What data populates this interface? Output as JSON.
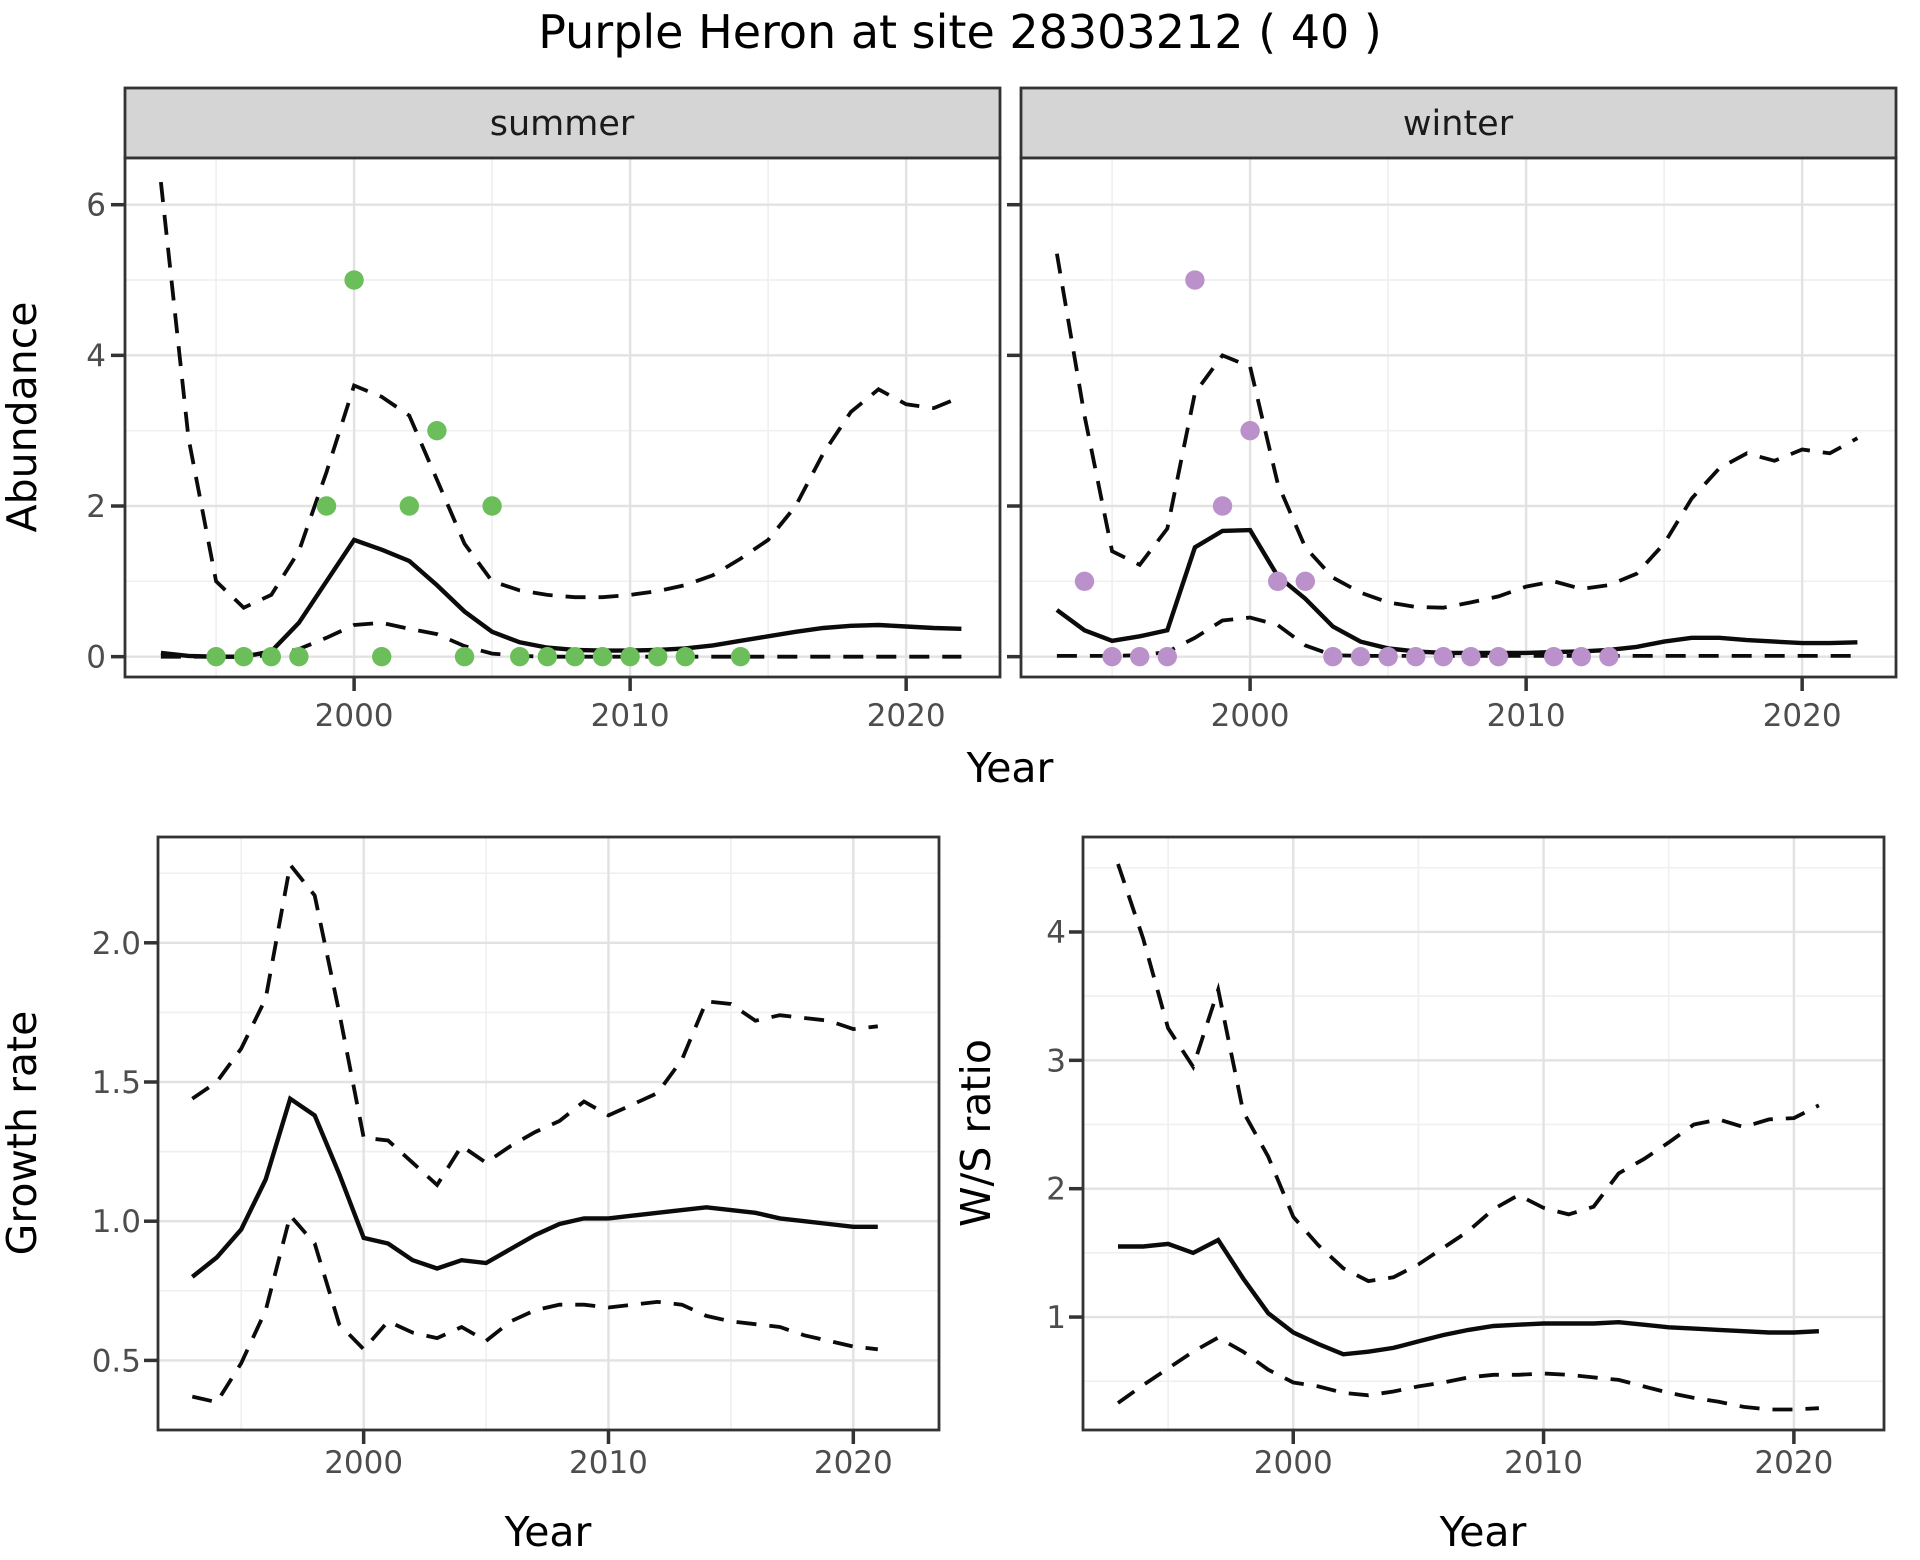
{
  "figure": {
    "title": "Purple Heron at site 28303212 ( 40 )"
  },
  "colors": {
    "summer_point": "#6CBE5A",
    "winter_point": "#BA91CA",
    "line": "#0b0b0b",
    "grid_major": "#E2E2E2",
    "grid_minor": "#F0F0F0",
    "panel_border": "#333333",
    "axis_text": "#4d4d4d",
    "strip_fill": "#d5d5d5"
  },
  "chart_data": [
    {
      "id": "abundance-summer",
      "type": "line",
      "facet": "summer",
      "xlabel": "Year",
      "ylabel": "Abundance",
      "xlim": [
        1991.7,
        2023.4
      ],
      "ylim": [
        -0.27,
        6.62
      ],
      "xticks": [
        2000,
        2010,
        2020
      ],
      "xtick_labels": [
        "2000",
        "2010",
        "2020"
      ],
      "xticks_minor": [
        1995,
        2005,
        2015
      ],
      "yticks": [
        0,
        2,
        4,
        6
      ],
      "ytick_labels": [
        "0",
        "2",
        "4",
        "6"
      ],
      "yticks_minor": [
        1,
        3,
        5
      ],
      "x": [
        1993,
        1994,
        1995,
        1996,
        1997,
        1998,
        1999,
        2000,
        2001,
        2002,
        2003,
        2004,
        2005,
        2006,
        2007,
        2008,
        2009,
        2010,
        2011,
        2012,
        2013,
        2014,
        2015,
        2016,
        2017,
        2018,
        2019,
        2020,
        2021,
        2022
      ],
      "series": [
        {
          "name": "mean",
          "style": "solid",
          "values": [
            0.05,
            0.01,
            0,
            0,
            0.07,
            0.45,
            1.0,
            1.55,
            1.42,
            1.27,
            0.95,
            0.6,
            0.33,
            0.19,
            0.12,
            0.09,
            0.08,
            0.08,
            0.09,
            0.11,
            0.15,
            0.21,
            0.27,
            0.33,
            0.38,
            0.41,
            0.42,
            0.4,
            0.38,
            0.37
          ]
        },
        {
          "name": "upper-ci",
          "style": "dashed",
          "values": [
            6.3,
            2.9,
            1.0,
            0.65,
            0.82,
            1.4,
            2.45,
            3.6,
            3.45,
            3.2,
            2.35,
            1.5,
            1.0,
            0.88,
            0.82,
            0.79,
            0.79,
            0.82,
            0.87,
            0.95,
            1.08,
            1.3,
            1.55,
            2.0,
            2.7,
            3.25,
            3.55,
            3.35,
            3.3,
            3.45
          ]
        },
        {
          "name": "lower-ci",
          "style": "dashed",
          "values": [
            0,
            0,
            0,
            0,
            0.02,
            0.1,
            0.25,
            0.42,
            0.45,
            0.37,
            0.3,
            0.14,
            0.04,
            0.01,
            0,
            0,
            0,
            0,
            0,
            0,
            0,
            0,
            0,
            0,
            0,
            0,
            0,
            0,
            0,
            0
          ]
        }
      ],
      "scatter": {
        "name": "observed-counts",
        "color_key": "summer_point",
        "points": [
          [
            1995,
            0
          ],
          [
            1996,
            0
          ],
          [
            1997,
            0
          ],
          [
            1998,
            0
          ],
          [
            1999,
            2
          ],
          [
            2000,
            5
          ],
          [
            2001,
            0
          ],
          [
            2002,
            2
          ],
          [
            2003,
            3
          ],
          [
            2004,
            0
          ],
          [
            2005,
            2
          ],
          [
            2006,
            0
          ],
          [
            2007,
            0
          ],
          [
            2008,
            0
          ],
          [
            2009,
            0
          ],
          [
            2010,
            0
          ],
          [
            2011,
            0
          ],
          [
            2012,
            0
          ],
          [
            2014,
            0
          ]
        ]
      }
    },
    {
      "id": "abundance-winter",
      "type": "line",
      "facet": "winter",
      "xlabel": "Year",
      "ylabel": "Abundance",
      "xlim": [
        1991.7,
        2023.4
      ],
      "ylim": [
        -0.27,
        6.62
      ],
      "xticks": [
        2000,
        2010,
        2020
      ],
      "xtick_labels": [
        "2000",
        "2010",
        "2020"
      ],
      "xticks_minor": [
        1995,
        2005,
        2015
      ],
      "yticks": [
        0,
        2,
        4,
        6
      ],
      "ytick_labels": [
        "0",
        "2",
        "4",
        "6"
      ],
      "yticks_minor": [
        1,
        3,
        5
      ],
      "x": [
        1993,
        1994,
        1995,
        1996,
        1997,
        1998,
        1999,
        2000,
        2001,
        2002,
        2003,
        2004,
        2005,
        2006,
        2007,
        2008,
        2009,
        2010,
        2011,
        2012,
        2013,
        2014,
        2015,
        2016,
        2017,
        2018,
        2019,
        2020,
        2021,
        2022
      ],
      "series": [
        {
          "name": "mean",
          "style": "solid",
          "values": [
            0.62,
            0.35,
            0.21,
            0.27,
            0.35,
            1.45,
            1.67,
            1.68,
            1.07,
            0.77,
            0.4,
            0.2,
            0.11,
            0.07,
            0.05,
            0.05,
            0.05,
            0.05,
            0.06,
            0.07,
            0.09,
            0.13,
            0.2,
            0.25,
            0.25,
            0.22,
            0.2,
            0.18,
            0.18,
            0.19
          ]
        },
        {
          "name": "upper-ci",
          "style": "dashed",
          "values": [
            5.35,
            3.2,
            1.4,
            1.22,
            1.7,
            3.5,
            4.0,
            3.85,
            2.3,
            1.45,
            1.05,
            0.85,
            0.72,
            0.66,
            0.65,
            0.72,
            0.8,
            0.93,
            1.0,
            0.9,
            0.95,
            1.1,
            1.5,
            2.1,
            2.5,
            2.7,
            2.6,
            2.75,
            2.7,
            2.9
          ]
        },
        {
          "name": "lower-ci",
          "style": "dashed",
          "values": [
            0.01,
            0.01,
            0.01,
            0.02,
            0.06,
            0.25,
            0.48,
            0.52,
            0.42,
            0.15,
            0.02,
            0.01,
            0.01,
            0.01,
            0.01,
            0.01,
            0.01,
            0.01,
            0.01,
            0.01,
            0.01,
            0.01,
            0.01,
            0.01,
            0.01,
            0.01,
            0.01,
            0.01,
            0.01,
            0.01
          ]
        }
      ],
      "scatter": {
        "name": "observed-counts",
        "color_key": "winter_point",
        "points": [
          [
            1994,
            1
          ],
          [
            1995,
            0
          ],
          [
            1996,
            0
          ],
          [
            1997,
            0
          ],
          [
            1998,
            5
          ],
          [
            1999,
            2
          ],
          [
            2000,
            3
          ],
          [
            2001,
            1
          ],
          [
            2002,
            1
          ],
          [
            2003,
            0
          ],
          [
            2004,
            0
          ],
          [
            2005,
            0
          ],
          [
            2006,
            0
          ],
          [
            2007,
            0
          ],
          [
            2008,
            0
          ],
          [
            2009,
            0
          ],
          [
            2011,
            0
          ],
          [
            2012,
            0
          ],
          [
            2013,
            0
          ]
        ]
      }
    },
    {
      "id": "growth-rate",
      "type": "line",
      "facet": "",
      "xlabel": "Year",
      "ylabel": "Growth rate",
      "xlim": [
        1991.6,
        2023.5
      ],
      "ylim": [
        0.25,
        2.38
      ],
      "xticks": [
        2000,
        2010,
        2020
      ],
      "xtick_labels": [
        "2000",
        "2010",
        "2020"
      ],
      "xticks_minor": [
        1995,
        2005,
        2015
      ],
      "yticks": [
        0.5,
        1.0,
        1.5,
        2.0
      ],
      "ytick_labels": [
        "0.5",
        "1.0",
        "1.5",
        "2.0"
      ],
      "yticks_minor": [
        0.75,
        1.25,
        1.75,
        2.25
      ],
      "x": [
        1993,
        1994,
        1995,
        1996,
        1997,
        1998,
        1999,
        2000,
        2001,
        2002,
        2003,
        2004,
        2005,
        2006,
        2007,
        2008,
        2009,
        2010,
        2011,
        2012,
        2013,
        2014,
        2015,
        2016,
        2017,
        2018,
        2019,
        2020,
        2021
      ],
      "series": [
        {
          "name": "mean",
          "style": "solid",
          "values": [
            0.8,
            0.87,
            0.97,
            1.15,
            1.44,
            1.38,
            1.17,
            0.94,
            0.92,
            0.86,
            0.83,
            0.86,
            0.85,
            0.9,
            0.95,
            0.99,
            1.01,
            1.01,
            1.02,
            1.03,
            1.04,
            1.05,
            1.04,
            1.03,
            1.01,
            1.0,
            0.99,
            0.98,
            0.98
          ]
        },
        {
          "name": "upper-ci",
          "style": "dashed",
          "values": [
            1.44,
            1.5,
            1.62,
            1.8,
            2.28,
            2.17,
            1.75,
            1.3,
            1.29,
            1.21,
            1.13,
            1.27,
            1.21,
            1.27,
            1.32,
            1.36,
            1.43,
            1.38,
            1.42,
            1.46,
            1.58,
            1.79,
            1.78,
            1.72,
            1.74,
            1.73,
            1.72,
            1.69,
            1.7
          ]
        },
        {
          "name": "lower-ci",
          "style": "dashed",
          "values": [
            0.37,
            0.35,
            0.49,
            0.68,
            1.02,
            0.92,
            0.63,
            0.54,
            0.64,
            0.6,
            0.58,
            0.62,
            0.57,
            0.64,
            0.68,
            0.7,
            0.7,
            0.69,
            0.7,
            0.71,
            0.7,
            0.66,
            0.64,
            0.63,
            0.62,
            0.59,
            0.57,
            0.55,
            0.54
          ]
        }
      ]
    },
    {
      "id": "ws-ratio",
      "type": "line",
      "facet": "",
      "xlabel": "Year",
      "ylabel": "W/S ratio",
      "xlim": [
        1991.6,
        2023.6
      ],
      "ylim": [
        0.12,
        4.74
      ],
      "xticks": [
        2000,
        2010,
        2020
      ],
      "xtick_labels": [
        "2000",
        "2010",
        "2020"
      ],
      "xticks_minor": [
        1995,
        2005,
        2015
      ],
      "yticks": [
        1,
        2,
        3,
        4
      ],
      "ytick_labels": [
        "1",
        "2",
        "3",
        "4"
      ],
      "yticks_minor": [
        0.5,
        1.5,
        2.5,
        3.5,
        4.5
      ],
      "x": [
        1993,
        1994,
        1995,
        1996,
        1997,
        1998,
        1999,
        2000,
        2001,
        2002,
        2003,
        2004,
        2005,
        2006,
        2007,
        2008,
        2009,
        2010,
        2011,
        2012,
        2013,
        2014,
        2015,
        2016,
        2017,
        2018,
        2019,
        2020,
        2021
      ],
      "series": [
        {
          "name": "mean",
          "style": "solid",
          "values": [
            1.55,
            1.55,
            1.57,
            1.5,
            1.6,
            1.3,
            1.03,
            0.88,
            0.79,
            0.71,
            0.73,
            0.76,
            0.81,
            0.86,
            0.9,
            0.93,
            0.94,
            0.95,
            0.95,
            0.95,
            0.96,
            0.94,
            0.92,
            0.91,
            0.9,
            0.89,
            0.88,
            0.88,
            0.89
          ]
        },
        {
          "name": "upper-ci",
          "style": "dashed",
          "values": [
            4.53,
            3.95,
            3.25,
            2.95,
            3.55,
            2.6,
            2.25,
            1.78,
            1.56,
            1.38,
            1.28,
            1.31,
            1.41,
            1.54,
            1.67,
            1.84,
            1.95,
            1.85,
            1.8,
            1.86,
            2.12,
            2.23,
            2.36,
            2.5,
            2.54,
            2.48,
            2.54,
            2.55,
            2.65
          ]
        },
        {
          "name": "lower-ci",
          "style": "dashed",
          "values": [
            0.33,
            0.47,
            0.6,
            0.73,
            0.84,
            0.73,
            0.59,
            0.49,
            0.46,
            0.41,
            0.39,
            0.42,
            0.46,
            0.49,
            0.53,
            0.55,
            0.55,
            0.56,
            0.55,
            0.53,
            0.51,
            0.46,
            0.41,
            0.37,
            0.34,
            0.3,
            0.28,
            0.28,
            0.29
          ]
        }
      ]
    }
  ]
}
